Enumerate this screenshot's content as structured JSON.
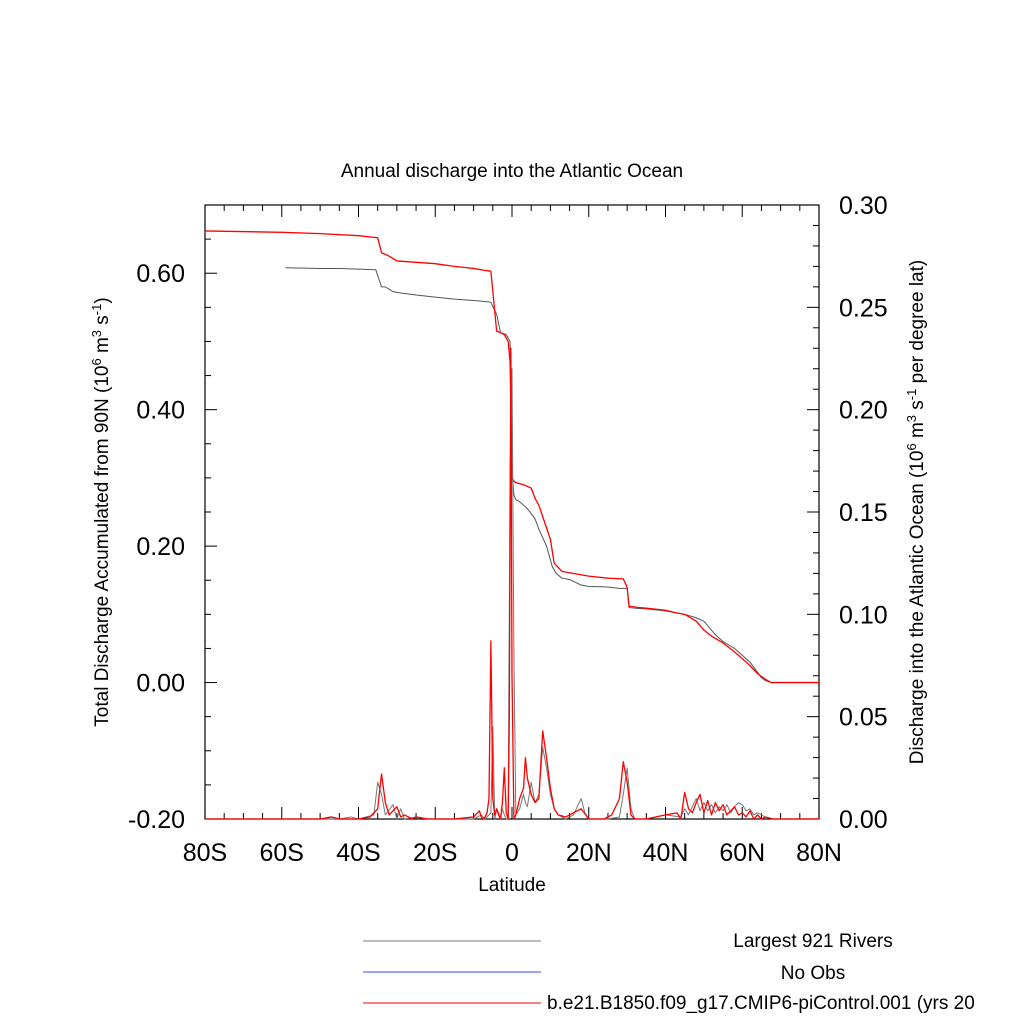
{
  "chart_data": {
    "type": "line",
    "title": "Annual discharge into the Atlantic Ocean",
    "xlabel": "Latitude",
    "ylabel_left": "Total Discharge Accumulated from 90N (10",
    "ylabel_left_sup1": "6",
    "ylabel_left_mid": " m",
    "ylabel_left_sup2": "3",
    "ylabel_left_mid2": " s",
    "ylabel_left_sup3": "-1",
    "ylabel_left_end": ")",
    "ylabel_right": "Discharge into the Atlantic Ocean (10",
    "ylabel_right_sup1": "6",
    "ylabel_right_mid": " m",
    "ylabel_right_sup2": "3",
    "ylabel_right_mid2": " s",
    "ylabel_right_sup3": "-1",
    "ylabel_right_end": " per degree lat)",
    "xlim": [
      -80,
      80
    ],
    "ylim_left": [
      -0.2,
      0.7
    ],
    "ylim_right": [
      0,
      0.3
    ],
    "x_ticks": [
      -80,
      -60,
      -40,
      -20,
      0,
      20,
      40,
      60,
      80
    ],
    "x_tick_labels": [
      "80S",
      "60S",
      "40S",
      "20S",
      "0",
      "20N",
      "40N",
      "60N",
      "80N"
    ],
    "y_left_ticks": [
      -0.2,
      0.0,
      0.2,
      0.4,
      0.6
    ],
    "y_left_tick_labels": [
      "-0.20",
      "0.00",
      "0.20",
      "0.40",
      "0.60"
    ],
    "y_right_ticks": [
      0,
      0.05,
      0.1,
      0.15,
      0.2,
      0.25,
      0.3
    ],
    "y_right_tick_labels": [
      "0.00",
      "0.05",
      "0.10",
      "0.15",
      "0.20",
      "0.25",
      "0.30"
    ],
    "grid": false,
    "legend_placement": "bottom",
    "legend": [
      {
        "label": "Largest 921 Rivers",
        "color": "#777777"
      },
      {
        "label": "No Obs",
        "color": "#3344ff"
      },
      {
        "label": "b.e21.B1850.f09_g17.CMIP6-piControl.001 (yrs 20",
        "color": "#ff0000"
      }
    ],
    "series": [
      {
        "color": "#555555",
        "axis": "left",
        "x": [
          -59,
          -50,
          -45,
          -40,
          -35.5,
          -34,
          -33,
          -31,
          -29,
          -25,
          -20,
          -15,
          -10,
          -6,
          -5.5,
          -4,
          -3,
          -1.5,
          -0.5,
          0,
          0.5,
          1,
          2,
          4,
          6,
          7,
          9,
          10.5,
          11.5,
          13,
          15,
          18,
          20,
          25,
          28,
          30,
          30.5,
          32,
          35,
          40,
          43,
          45,
          48,
          50,
          53,
          55,
          58,
          60,
          62,
          64,
          65,
          66,
          67.5,
          70,
          75,
          80
        ],
        "y": [
          0.608,
          0.607,
          0.607,
          0.606,
          0.605,
          0.58,
          0.58,
          0.573,
          0.571,
          0.568,
          0.565,
          0.562,
          0.56,
          0.558,
          0.557,
          0.54,
          0.513,
          0.51,
          0.5,
          0.31,
          0.275,
          0.268,
          0.265,
          0.255,
          0.24,
          0.225,
          0.2,
          0.17,
          0.16,
          0.153,
          0.151,
          0.143,
          0.141,
          0.14,
          0.138,
          0.138,
          0.11,
          0.109,
          0.108,
          0.105,
          0.102,
          0.1,
          0.095,
          0.09,
          0.07,
          0.06,
          0.05,
          0.04,
          0.03,
          0.015,
          0.007,
          0.003,
          0.0,
          0.0,
          0.0,
          0.0
        ]
      },
      {
        "color": "#ff0000",
        "axis": "left",
        "x": [
          -80,
          -60,
          -50,
          -40,
          -35,
          -34,
          -32,
          -30,
          -25,
          -20,
          -15,
          -10,
          -7,
          -5.5,
          -4,
          -3,
          -2,
          -1,
          -0.5,
          0,
          0.5,
          1,
          3,
          5,
          6,
          7,
          8.5,
          10,
          11,
          13,
          15,
          20,
          25,
          29,
          30,
          30.5,
          33,
          35,
          40,
          43,
          45,
          48,
          50,
          52,
          55,
          58,
          60,
          62,
          64,
          66,
          67.5,
          70,
          75,
          80
        ],
        "y": [
          0.662,
          0.66,
          0.658,
          0.655,
          0.652,
          0.63,
          0.625,
          0.618,
          0.616,
          0.614,
          0.61,
          0.607,
          0.604,
          0.603,
          0.515,
          0.513,
          0.51,
          0.5,
          0.47,
          0.3,
          0.295,
          0.293,
          0.29,
          0.285,
          0.27,
          0.26,
          0.235,
          0.21,
          0.175,
          0.163,
          0.161,
          0.156,
          0.153,
          0.152,
          0.14,
          0.112,
          0.11,
          0.109,
          0.106,
          0.102,
          0.1,
          0.09,
          0.077,
          0.068,
          0.058,
          0.045,
          0.035,
          0.025,
          0.013,
          0.005,
          0.0,
          0.0,
          0.0,
          0.0
        ]
      },
      {
        "color": "#777777",
        "axis": "right",
        "x": [
          -80,
          -45,
          -42,
          -40,
          -36,
          -35,
          -34,
          -33,
          -31,
          -30,
          -29,
          -28,
          -25,
          -22,
          -20,
          -10,
          -8,
          -7.5,
          -7,
          -6.5,
          -5.5,
          -5,
          -4.5,
          -4,
          -3.5,
          -3,
          -2.5,
          -2,
          -1.5,
          -1,
          -0.5,
          0,
          0.5,
          1,
          2,
          3,
          3.5,
          4,
          4.5,
          5,
          6,
          7,
          8,
          9,
          10,
          11,
          12,
          14,
          16,
          18,
          19,
          20,
          25,
          28,
          29,
          30,
          31,
          32,
          35,
          40,
          44,
          45,
          46,
          47,
          48,
          49,
          50,
          51,
          52,
          53,
          54,
          55,
          56,
          57,
          58,
          59,
          60,
          61,
          62,
          63,
          64,
          66,
          68,
          80
        ],
        "y": [
          0.0,
          0.0,
          0.001,
          0.0,
          0.002,
          0.018,
          0.012,
          0.002,
          0.007,
          0.0,
          0.005,
          0.0,
          0.001,
          0.0,
          0.0,
          0.0,
          0.002,
          0.001,
          0.0,
          0.001,
          0.003,
          0.045,
          0.0,
          0.005,
          0.003,
          0.0,
          0.005,
          0.002,
          0.0,
          0.0,
          0.17,
          0.22,
          0.08,
          0.002,
          0.005,
          0.012,
          0.008,
          0.006,
          0.012,
          0.018,
          0.008,
          0.012,
          0.035,
          0.025,
          0.012,
          0.005,
          0.002,
          0.0,
          0.002,
          0.01,
          0.003,
          0.0,
          0.0,
          0.001,
          0.012,
          0.025,
          0.005,
          0.0,
          0.0,
          0.002,
          0.001,
          0.005,
          0.002,
          0.006,
          0.01,
          0.004,
          0.008,
          0.004,
          0.007,
          0.003,
          0.006,
          0.004,
          0.007,
          0.003,
          0.006,
          0.008,
          0.007,
          0.004,
          0.005,
          0.002,
          0.003,
          0.001,
          0.0,
          0.0
        ]
      },
      {
        "color": "#ff0000",
        "axis": "right",
        "x": [
          -80,
          -50,
          -47,
          -45,
          -40,
          -37,
          -35,
          -34,
          -33,
          -32,
          -30,
          -29,
          -28,
          -26,
          -25,
          -22,
          -20,
          -15,
          -10,
          -8.5,
          -8,
          -7.5,
          -7,
          -6.5,
          -6,
          -5.5,
          -5,
          -4.5,
          -4,
          -3.5,
          -3,
          -2.5,
          -2,
          -1.5,
          -1,
          -0.7,
          -0.3,
          0,
          0.5,
          1,
          2,
          3,
          3.5,
          4,
          5,
          6,
          7,
          8,
          9,
          10,
          11,
          12,
          14,
          16,
          18,
          20,
          22,
          24,
          26,
          28,
          29,
          30,
          31,
          32,
          35,
          40,
          43,
          44,
          45,
          46,
          47,
          48,
          49,
          50,
          51,
          52,
          53,
          54,
          55,
          56,
          57,
          58,
          59,
          60,
          61,
          62,
          63,
          64,
          65,
          66,
          68,
          80
        ],
        "y": [
          0.0,
          0.0,
          0.001,
          0.0,
          0.0,
          0.001,
          0.005,
          0.022,
          0.008,
          0.002,
          0.006,
          0.001,
          0.002,
          0.0,
          0.001,
          0.0,
          0.0,
          0.0,
          0.001,
          0.004,
          0.001,
          0.0,
          0.001,
          0.003,
          0.01,
          0.087,
          0.01,
          0.002,
          0.005,
          0.002,
          0.0,
          0.008,
          0.025,
          0.003,
          0.0,
          0.05,
          0.23,
          0.07,
          0.0,
          0.002,
          0.01,
          0.015,
          0.03,
          0.02,
          0.012,
          0.008,
          0.01,
          0.043,
          0.03,
          0.015,
          0.005,
          0.002,
          0.001,
          0.003,
          0.005,
          0.0,
          0.0,
          0.0,
          0.002,
          0.01,
          0.028,
          0.018,
          0.002,
          0.0,
          0.0,
          0.002,
          0.003,
          0.0,
          0.013,
          0.005,
          0.003,
          0.008,
          0.012,
          0.003,
          0.009,
          0.002,
          0.008,
          0.004,
          0.007,
          0.002,
          0.004,
          0.006,
          0.002,
          0.003,
          0.001,
          0.004,
          0.0,
          0.002,
          0.0,
          0.001,
          0.0,
          0.0
        ]
      }
    ]
  }
}
